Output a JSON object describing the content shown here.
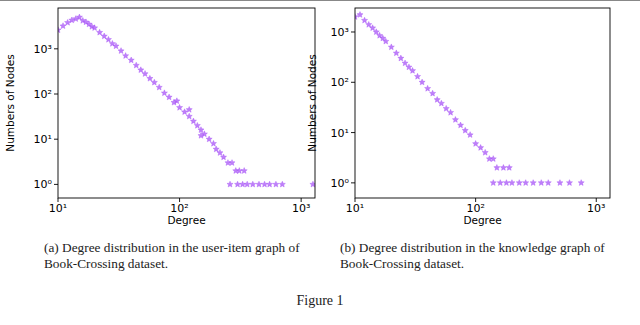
{
  "chart_data": [
    {
      "type": "scatter",
      "caption": "(a) Degree distribution in the user-item graph of Book-Crossing dataset.",
      "x_label": "Degree",
      "y_label": "Numbers of Nodes",
      "color": "#a855f7",
      "marker": "star",
      "log": true,
      "xlim": [
        10,
        1300
      ],
      "ylim": [
        0.5,
        8000
      ],
      "xticks": [
        {
          "value": 10,
          "label": "10¹"
        },
        {
          "value": 100,
          "label": "10²"
        },
        {
          "value": 1000,
          "label": "10³"
        }
      ],
      "yticks": [
        {
          "value": 1,
          "label": "10⁰"
        },
        {
          "value": 10,
          "label": "10¹"
        },
        {
          "value": 100,
          "label": "10²"
        },
        {
          "value": 1000,
          "label": "10³"
        }
      ],
      "x": [
        10,
        11,
        12,
        13,
        14,
        15,
        16,
        17,
        18,
        19,
        20,
        22,
        24,
        26,
        28,
        30,
        33,
        36,
        40,
        44,
        48,
        52,
        57,
        62,
        68,
        75,
        82,
        90,
        100,
        110,
        120,
        130,
        140,
        150,
        160,
        175,
        190,
        200,
        215,
        230,
        250,
        270,
        290,
        310,
        340,
        260,
        300,
        330,
        360,
        400,
        450,
        500,
        550,
        620,
        700,
        1250,
        95,
        120,
        150
      ],
      "values": [
        2600,
        3200,
        3800,
        4300,
        4600,
        5000,
        4200,
        3900,
        3500,
        3100,
        2900,
        2300,
        1900,
        1600,
        1300,
        1150,
        900,
        700,
        560,
        430,
        340,
        280,
        220,
        180,
        140,
        105,
        85,
        65,
        50,
        40,
        32,
        25,
        20,
        16,
        13,
        10,
        8,
        6,
        5,
        4,
        3,
        3,
        2,
        2,
        2,
        1,
        1,
        1,
        1,
        1,
        1,
        1,
        1,
        1,
        1,
        1,
        70,
        45,
        12
      ]
    },
    {
      "type": "scatter",
      "caption": "(b) Degree distribution in the knowledge graph of Book-Crossing dataset.",
      "x_label": "Degree",
      "y_label": "Numbers of Nodes",
      "color": "#a855f7",
      "marker": "star",
      "log": true,
      "xlim": [
        10,
        1300
      ],
      "ylim": [
        0.5,
        3000
      ],
      "xticks": [
        {
          "value": 10,
          "label": "10¹"
        },
        {
          "value": 100,
          "label": "10²"
        },
        {
          "value": 1000,
          "label": "10³"
        }
      ],
      "yticks": [
        {
          "value": 1,
          "label": "10⁰"
        },
        {
          "value": 10,
          "label": "10¹"
        },
        {
          "value": 100,
          "label": "10²"
        },
        {
          "value": 1000,
          "label": "10³"
        }
      ],
      "x": [
        10,
        11,
        12,
        13,
        14,
        15,
        16,
        17,
        18,
        20,
        22,
        24,
        26,
        28,
        30,
        33,
        36,
        40,
        44,
        48,
        52,
        57,
        62,
        68,
        75,
        82,
        90,
        100,
        110,
        120,
        130,
        140,
        150,
        170,
        190,
        140,
        160,
        180,
        200,
        230,
        260,
        300,
        350,
        400,
        500,
        600,
        750
      ],
      "values": [
        2000,
        2200,
        1700,
        1400,
        1200,
        1000,
        850,
        750,
        650,
        500,
        380,
        300,
        240,
        200,
        170,
        130,
        100,
        75,
        60,
        45,
        38,
        30,
        25,
        18,
        14,
        11,
        9,
        6,
        5,
        4,
        3,
        3,
        2,
        2,
        2,
        1,
        1,
        1,
        1,
        1,
        1,
        1,
        1,
        1,
        1,
        1,
        1
      ]
    }
  ],
  "figure_caption": "Figure 1"
}
